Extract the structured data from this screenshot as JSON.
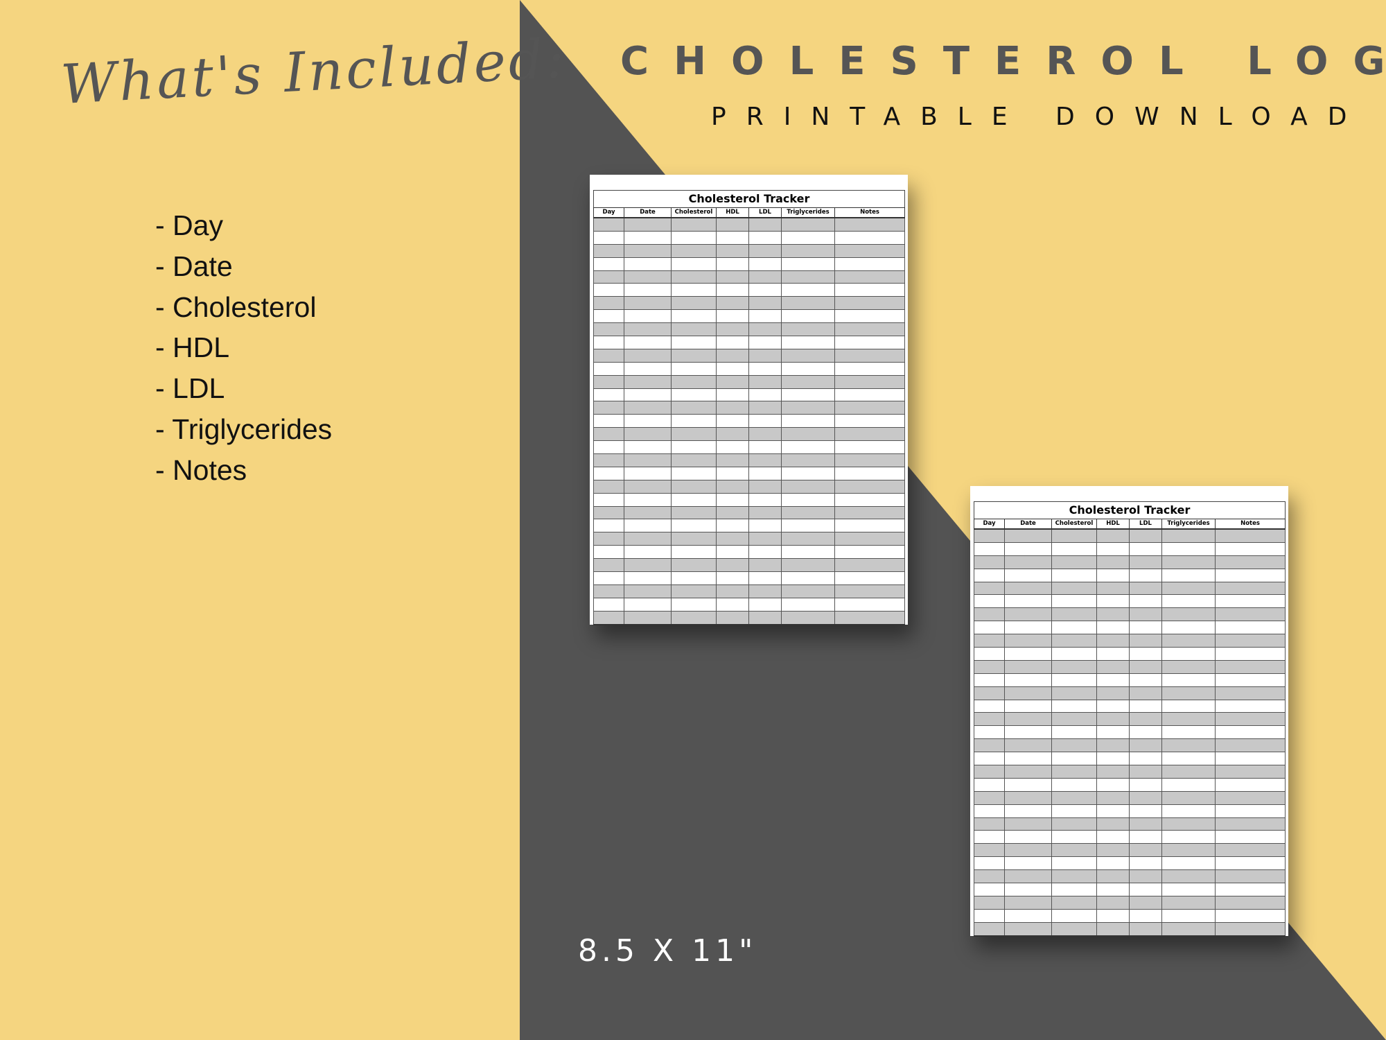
{
  "colors": {
    "background": "#f5d580",
    "dark_panel": "#535353",
    "heading_text": "#555555",
    "row_shading": "#c8c8c8"
  },
  "heading": "What's Included:",
  "included_items": [
    "- Day",
    "- Date",
    "- Cholesterol",
    "- HDL",
    "- LDL",
    "- Triglycerides",
    "- Notes"
  ],
  "title": "CHOLESTEROL LOG",
  "subtitle": "PRINTABLE DOWNLOAD",
  "size_label": "8.5 X 11\"",
  "tracker": {
    "title": "Cholesterol Tracker",
    "columns": [
      "Day",
      "Date",
      "Cholesterol",
      "HDL",
      "LDL",
      "Triglycerides",
      "Notes"
    ],
    "row_count": 31
  }
}
